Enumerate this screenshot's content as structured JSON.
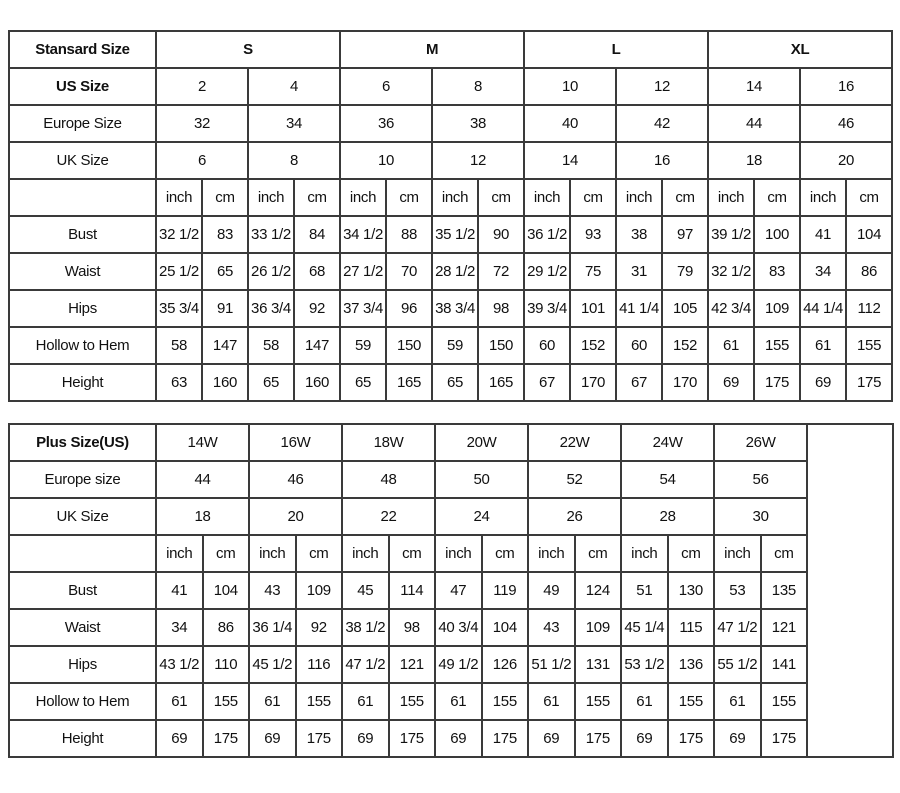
{
  "standard": {
    "header_label": "Stansard Size",
    "sizes": [
      "S",
      "M",
      "L",
      "XL"
    ],
    "rows": [
      {
        "label": "US Size",
        "bold": true,
        "values": [
          "2",
          "4",
          "6",
          "8",
          "10",
          "12",
          "14",
          "16"
        ]
      },
      {
        "label": "Europe Size",
        "values": [
          "32",
          "34",
          "36",
          "38",
          "40",
          "42",
          "44",
          "46"
        ]
      },
      {
        "label": "UK Size",
        "values": [
          "6",
          "8",
          "10",
          "12",
          "14",
          "16",
          "18",
          "20"
        ]
      }
    ],
    "units": [
      "inch",
      "cm",
      "inch",
      "cm",
      "inch",
      "cm",
      "inch",
      "cm",
      "inch",
      "cm",
      "inch",
      "cm",
      "inch",
      "cm",
      "inch",
      "cm"
    ],
    "measurements": [
      {
        "label": "Bust",
        "values": [
          "32 1/2",
          "83",
          "33 1/2",
          "84",
          "34 1/2",
          "88",
          "35 1/2",
          "90",
          "36 1/2",
          "93",
          "38",
          "97",
          "39 1/2",
          "100",
          "41",
          "104"
        ]
      },
      {
        "label": "Waist",
        "values": [
          "25 1/2",
          "65",
          "26 1/2",
          "68",
          "27 1/2",
          "70",
          "28 1/2",
          "72",
          "29 1/2",
          "75",
          "31",
          "79",
          "32 1/2",
          "83",
          "34",
          "86"
        ]
      },
      {
        "label": "Hips",
        "values": [
          "35 3/4",
          "91",
          "36 3/4",
          "92",
          "37 3/4",
          "96",
          "38 3/4",
          "98",
          "39 3/4",
          "101",
          "41 1/4",
          "105",
          "42 3/4",
          "109",
          "44 1/4",
          "112"
        ]
      },
      {
        "label": "Hollow to Hem",
        "values": [
          "58",
          "147",
          "58",
          "147",
          "59",
          "150",
          "59",
          "150",
          "60",
          "152",
          "60",
          "152",
          "61",
          "155",
          "61",
          "155"
        ]
      },
      {
        "label": "Height",
        "values": [
          "63",
          "160",
          "65",
          "160",
          "65",
          "165",
          "65",
          "165",
          "67",
          "170",
          "67",
          "170",
          "69",
          "175",
          "69",
          "175"
        ]
      }
    ]
  },
  "plus": {
    "header_label": "Plus Size(US)",
    "sizes": [
      "14W",
      "16W",
      "18W",
      "20W",
      "22W",
      "24W",
      "26W"
    ],
    "rows": [
      {
        "label": "Europe size",
        "values": [
          "44",
          "46",
          "48",
          "50",
          "52",
          "54",
          "56"
        ]
      },
      {
        "label": "UK Size",
        "values": [
          "18",
          "20",
          "22",
          "24",
          "26",
          "28",
          "30"
        ]
      }
    ],
    "units": [
      "inch",
      "cm",
      "inch",
      "cm",
      "inch",
      "cm",
      "inch",
      "cm",
      "inch",
      "cm",
      "inch",
      "cm",
      "inch",
      "cm"
    ],
    "measurements": [
      {
        "label": "Bust",
        "values": [
          "41",
          "104",
          "43",
          "109",
          "45",
          "114",
          "47",
          "119",
          "49",
          "124",
          "51",
          "130",
          "53",
          "135"
        ]
      },
      {
        "label": "Waist",
        "values": [
          "34",
          "86",
          "36 1/4",
          "92",
          "38 1/2",
          "98",
          "40 3/4",
          "104",
          "43",
          "109",
          "45 1/4",
          "115",
          "47 1/2",
          "121"
        ]
      },
      {
        "label": "Hips",
        "values": [
          "43 1/2",
          "110",
          "45 1/2",
          "116",
          "47 1/2",
          "121",
          "49 1/2",
          "126",
          "51 1/2",
          "131",
          "53 1/2",
          "136",
          "55 1/2",
          "141"
        ]
      },
      {
        "label": "Hollow to Hem",
        "values": [
          "61",
          "155",
          "61",
          "155",
          "61",
          "155",
          "61",
          "155",
          "61",
          "155",
          "61",
          "155",
          "61",
          "155"
        ]
      },
      {
        "label": "Height",
        "values": [
          "69",
          "175",
          "69",
          "175",
          "69",
          "175",
          "69",
          "175",
          "69",
          "175",
          "69",
          "175",
          "69",
          "175"
        ]
      }
    ]
  }
}
